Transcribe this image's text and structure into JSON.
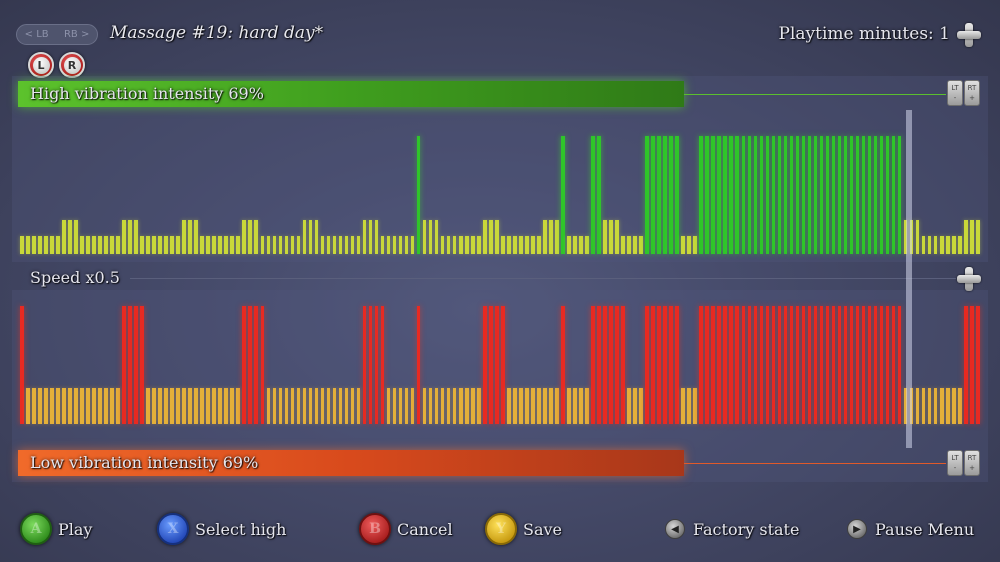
{
  "header": {
    "bumper_left": "< LB",
    "bumper_right": "RB >",
    "title": "Massage #19: hard day*",
    "l_button": "L",
    "r_button": "R",
    "playtime": "Playtime minutes: 1"
  },
  "high": {
    "label": "High vibration intensity 69%",
    "intensity": 0.69,
    "lt": "LT",
    "rt": "RT",
    "minus": "-",
    "plus": "+"
  },
  "speed": {
    "label": "Speed x0.5"
  },
  "low": {
    "label": "Low vibration intensity 69%",
    "intensity": 0.69,
    "lt": "LT",
    "rt": "RT",
    "minus": "-",
    "plus": "+"
  },
  "colors": {
    "high_on": "#2fc52a",
    "high_off": "#c9d83a",
    "low_on": "#e82a22",
    "low_off": "#e4b03a"
  },
  "footer": {
    "play": "Play",
    "select_high": "Select high",
    "cancel": "Cancel",
    "save": "Save",
    "factory_state": "Factory state",
    "pause_menu": "Pause Menu",
    "a": "A",
    "x": "X",
    "b": "B",
    "y": "Y"
  }
}
